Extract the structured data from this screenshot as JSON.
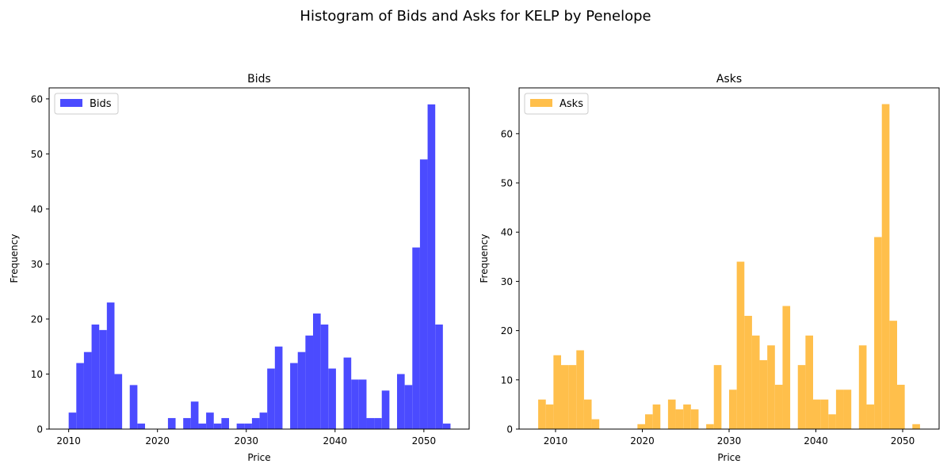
{
  "figure": {
    "suptitle": "Histogram of Bids and Asks for KELP by Penelope"
  },
  "chart_data": [
    {
      "type": "bar",
      "title": "Bids",
      "xlabel": "Price",
      "ylabel": "Frequency",
      "color": "#4b4bff",
      "legend": {
        "position": "top-left",
        "labels": [
          "Bids"
        ]
      },
      "xlim": [
        2007.8,
        2055.1
      ],
      "ylim": [
        0,
        62
      ],
      "xticks": [
        2010,
        2020,
        2030,
        2040,
        2050
      ],
      "yticks": [
        0,
        10,
        20,
        30,
        40,
        50,
        60
      ],
      "series": [
        {
          "name": "Bids",
          "bins": [
            [
              2010,
              2010.86,
              3
            ],
            [
              2010.86,
              2011.72,
              12
            ],
            [
              2011.72,
              2012.58,
              14
            ],
            [
              2012.58,
              2013.44,
              19
            ],
            [
              2013.44,
              2014.3,
              18
            ],
            [
              2014.3,
              2015.16,
              23
            ],
            [
              2015.16,
              2016.02,
              10
            ],
            [
              2016.88,
              2017.74,
              8
            ],
            [
              2017.74,
              2018.6,
              1
            ],
            [
              2021.18,
              2022.04,
              2
            ],
            [
              2022.9,
              2023.76,
              2
            ],
            [
              2023.76,
              2024.62,
              5
            ],
            [
              2024.62,
              2025.48,
              1
            ],
            [
              2025.48,
              2026.34,
              3
            ],
            [
              2026.34,
              2027.2,
              1
            ],
            [
              2027.2,
              2028.06,
              2
            ],
            [
              2028.92,
              2029.78,
              1
            ],
            [
              2029.78,
              2030.64,
              1
            ],
            [
              2030.64,
              2031.5,
              2
            ],
            [
              2031.5,
              2032.36,
              3
            ],
            [
              2032.36,
              2033.22,
              11
            ],
            [
              2033.22,
              2034.08,
              15
            ],
            [
              2034.94,
              2035.8,
              12
            ],
            [
              2035.8,
              2036.66,
              14
            ],
            [
              2036.66,
              2037.52,
              17
            ],
            [
              2037.52,
              2038.38,
              21
            ],
            [
              2038.38,
              2039.24,
              19
            ],
            [
              2039.24,
              2040.1,
              11
            ],
            [
              2040.96,
              2041.82,
              13
            ],
            [
              2041.82,
              2042.68,
              9
            ],
            [
              2042.68,
              2043.54,
              9
            ],
            [
              2043.54,
              2044.4,
              2
            ],
            [
              2044.4,
              2045.26,
              2
            ],
            [
              2045.26,
              2046.12,
              7
            ],
            [
              2046.98,
              2047.84,
              10
            ],
            [
              2047.84,
              2048.7,
              8
            ],
            [
              2048.7,
              2049.56,
              33
            ],
            [
              2049.56,
              2050.42,
              49
            ],
            [
              2050.42,
              2051.28,
              59
            ],
            [
              2051.28,
              2052.14,
              19
            ],
            [
              2052.14,
              2053,
              1
            ]
          ]
        }
      ]
    },
    {
      "type": "bar",
      "title": "Asks",
      "xlabel": "Price",
      "ylabel": "Frequency",
      "color": "#ffbf4b",
      "legend": {
        "position": "top-left",
        "labels": [
          "Asks"
        ]
      },
      "xlim": [
        2005.8,
        2054.2
      ],
      "ylim": [
        0,
        69.3
      ],
      "xticks": [
        2010,
        2020,
        2030,
        2040,
        2050
      ],
      "yticks": [
        0,
        10,
        20,
        30,
        40,
        50,
        60
      ],
      "series": [
        {
          "name": "Asks",
          "bins": [
            [
              2008,
              2008.88,
              6
            ],
            [
              2008.88,
              2009.76,
              5
            ],
            [
              2009.76,
              2010.64,
              15
            ],
            [
              2010.64,
              2011.52,
              13
            ],
            [
              2011.52,
              2012.4,
              13
            ],
            [
              2012.4,
              2013.28,
              16
            ],
            [
              2013.28,
              2014.16,
              6
            ],
            [
              2014.16,
              2015.04,
              2
            ],
            [
              2019.44,
              2020.32,
              1
            ],
            [
              2020.32,
              2021.2,
              3
            ],
            [
              2021.2,
              2022.08,
              5
            ],
            [
              2022.96,
              2023.84,
              6
            ],
            [
              2023.84,
              2024.72,
              4
            ],
            [
              2024.72,
              2025.6,
              5
            ],
            [
              2025.6,
              2026.48,
              4
            ],
            [
              2027.36,
              2028.24,
              1
            ],
            [
              2028.24,
              2029.12,
              13
            ],
            [
              2030,
              2030.88,
              8
            ],
            [
              2030.88,
              2031.76,
              34
            ],
            [
              2031.76,
              2032.64,
              23
            ],
            [
              2032.64,
              2033.52,
              19
            ],
            [
              2033.52,
              2034.4,
              14
            ],
            [
              2034.4,
              2035.28,
              17
            ],
            [
              2035.28,
              2036.16,
              9
            ],
            [
              2036.16,
              2037.04,
              25
            ],
            [
              2037.92,
              2038.8,
              13
            ],
            [
              2038.8,
              2039.68,
              19
            ],
            [
              2039.68,
              2040.56,
              6
            ],
            [
              2040.56,
              2041.44,
              6
            ],
            [
              2041.44,
              2042.32,
              3
            ],
            [
              2042.32,
              2043.2,
              8
            ],
            [
              2043.2,
              2044.08,
              8
            ],
            [
              2044.96,
              2045.84,
              17
            ],
            [
              2045.84,
              2046.72,
              5
            ],
            [
              2046.72,
              2047.6,
              39
            ],
            [
              2047.6,
              2048.48,
              66
            ],
            [
              2048.48,
              2049.36,
              22
            ],
            [
              2049.36,
              2050.24,
              9
            ],
            [
              2051.12,
              2052,
              1
            ]
          ]
        }
      ]
    }
  ]
}
